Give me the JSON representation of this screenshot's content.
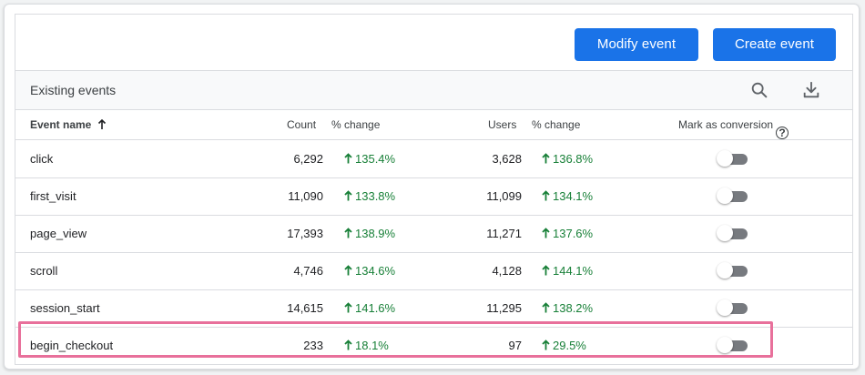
{
  "toolbar": {
    "modify_label": "Modify event",
    "create_label": "Create event"
  },
  "subheader": {
    "title": "Existing events",
    "icons": [
      "search-icon",
      "download-icon"
    ]
  },
  "table": {
    "columns": {
      "event_name": "Event name",
      "count": "Count",
      "count_change": "% change",
      "users": "Users",
      "users_change": "% change",
      "mark_conversion": "Mark as conversion",
      "help": "?"
    },
    "rows": [
      {
        "name": "click",
        "count": "6,292",
        "count_change": "135.4%",
        "users": "3,628",
        "users_change": "136.8%",
        "conversion": false
      },
      {
        "name": "first_visit",
        "count": "11,090",
        "count_change": "133.8%",
        "users": "11,099",
        "users_change": "134.1%",
        "conversion": false
      },
      {
        "name": "page_view",
        "count": "17,393",
        "count_change": "138.9%",
        "users": "11,271",
        "users_change": "137.6%",
        "conversion": false
      },
      {
        "name": "scroll",
        "count": "4,746",
        "count_change": "134.6%",
        "users": "4,128",
        "users_change": "144.1%",
        "conversion": false
      },
      {
        "name": "session_start",
        "count": "14,615",
        "count_change": "141.6%",
        "users": "11,295",
        "users_change": "138.2%",
        "conversion": false
      },
      {
        "name": "begin_checkout",
        "count": "233",
        "count_change": "18.1%",
        "users": "97",
        "users_change": "29.5%",
        "conversion": false
      }
    ]
  },
  "colors": {
    "primary_button": "#1a73e8",
    "positive_change": "#188038",
    "highlight_border": "#e8709b"
  }
}
